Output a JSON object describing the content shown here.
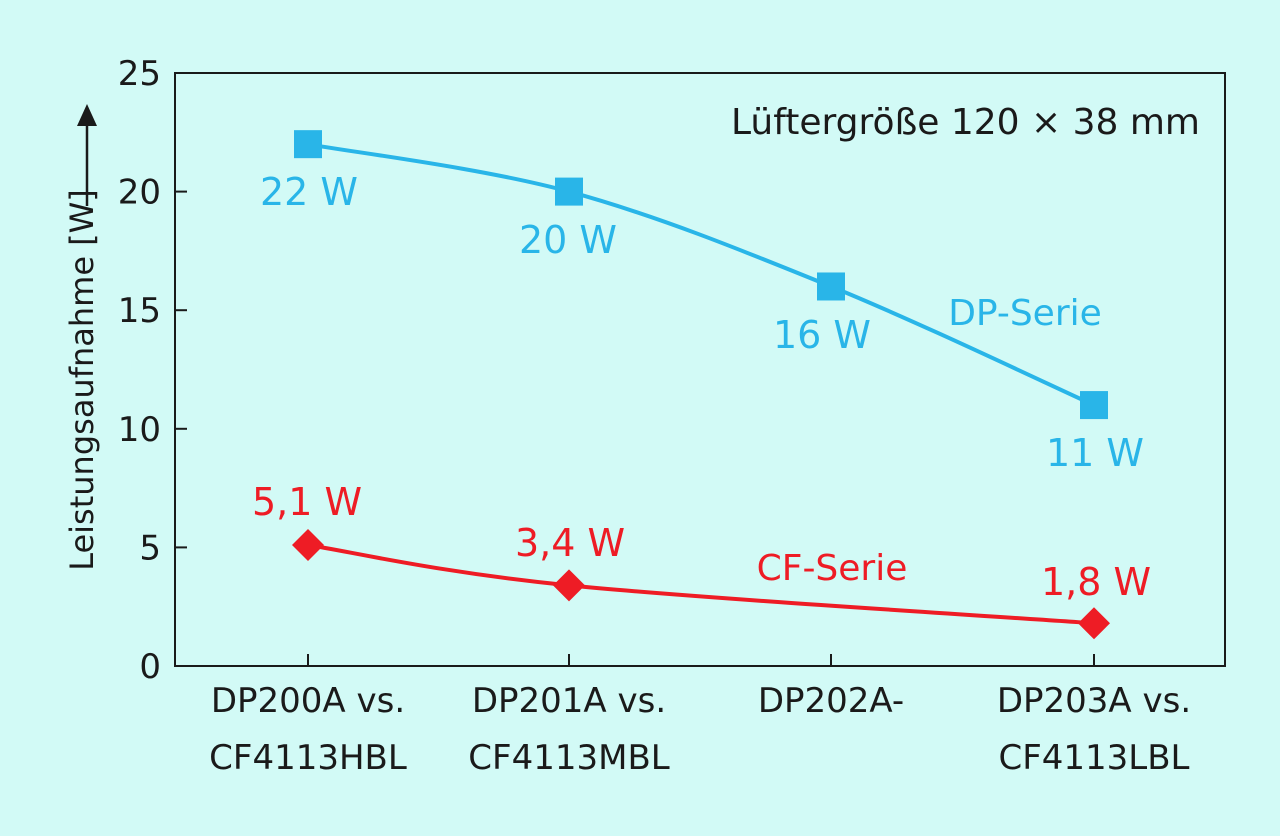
{
  "chart_data": {
    "type": "line",
    "categories": [
      [
        "DP200A vs.",
        "CF4113HBL"
      ],
      [
        "DP201A vs.",
        "CF4113MBL"
      ],
      [
        "DP202A-",
        ""
      ],
      [
        "DP203A vs.",
        "CF4113LBL"
      ]
    ],
    "ylabel": "Leistungsaufnahme [W]",
    "ylim": [
      0,
      25
    ],
    "yticks": [
      0,
      5,
      10,
      15,
      20,
      25
    ],
    "grid": false,
    "annotation": "Lüftergröße 120 × 38 mm",
    "series": [
      {
        "name": "DP-Serie",
        "color": "#29b5e8",
        "marker": "square",
        "values": [
          22,
          20,
          16,
          11
        ],
        "labels": [
          "22 W",
          "20 W",
          "16 W",
          "11 W"
        ]
      },
      {
        "name": "CF-Serie",
        "color": "#ee1c25",
        "marker": "diamond",
        "values": [
          5.1,
          3.4,
          null,
          1.8
        ],
        "labels": [
          "5,1 W",
          "3,4 W",
          "",
          "1,8 W"
        ]
      }
    ]
  }
}
